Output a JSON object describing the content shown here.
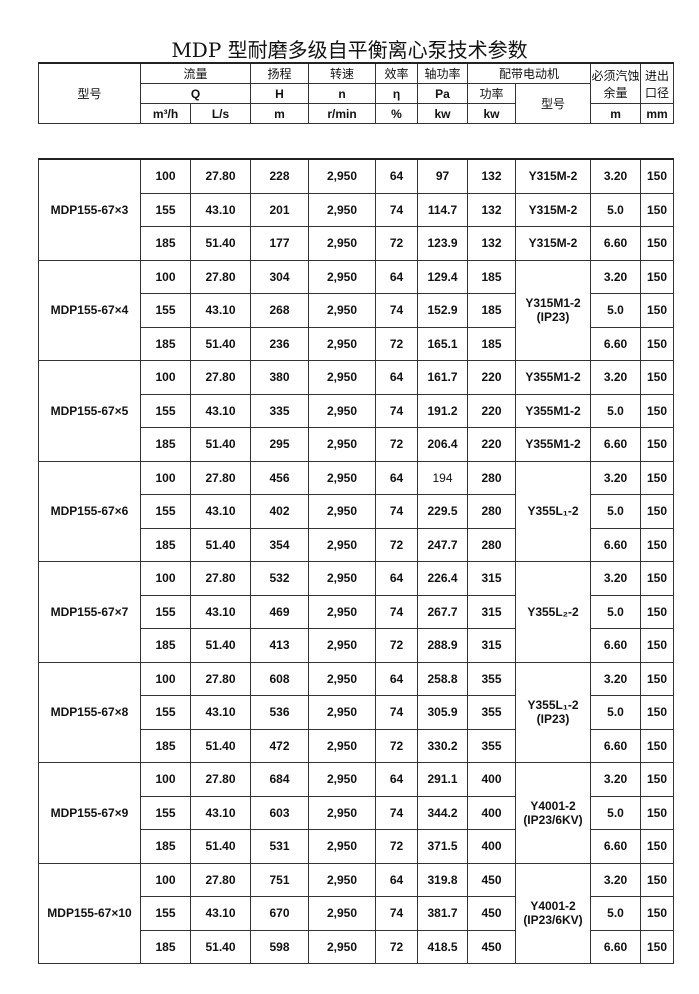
{
  "title": "MDP 型耐磨多级自平衡离心泵技术参数",
  "header": {
    "model": "型号",
    "flow": "流量",
    "head": "扬程",
    "speed": "转速",
    "eff": "效率",
    "shaft_power": "轴功率",
    "motor": "配带电动机",
    "npsh": "必须汽蚀余量",
    "port": "进出口径",
    "Q": "Q",
    "H": "H",
    "n": "n",
    "eta": "η",
    "Pa": "Pa",
    "motor_power": "功率",
    "motor_model": "型号",
    "u_q1": "m³/h",
    "u_q2": "L/s",
    "u_h": "m",
    "u_n": "r/min",
    "u_eta": "%",
    "u_pa": "kw",
    "u_kw": "kw",
    "u_npsh": "m",
    "u_port": "mm"
  },
  "groups": [
    {
      "model": "MDP155-67×3",
      "motor": [
        "Y315M-2",
        "Y315M-2",
        "Y315M-2"
      ],
      "rows": [
        [
          "100",
          "27.80",
          "228",
          "2,950",
          "64",
          "97",
          "132",
          "3.20",
          "150"
        ],
        [
          "155",
          "43.10",
          "201",
          "2,950",
          "74",
          "114.7",
          "132",
          "5.0",
          "150"
        ],
        [
          "185",
          "51.40",
          "177",
          "2,950",
          "72",
          "123.9",
          "132",
          "6.60",
          "150"
        ]
      ]
    },
    {
      "model": "MDP155-67×4",
      "motor": "Y315M1-2\n(IP23)",
      "rows": [
        [
          "100",
          "27.80",
          "304",
          "2,950",
          "64",
          "129.4",
          "185",
          "3.20",
          "150"
        ],
        [
          "155",
          "43.10",
          "268",
          "2,950",
          "74",
          "152.9",
          "185",
          "5.0",
          "150"
        ],
        [
          "185",
          "51.40",
          "236",
          "2,950",
          "72",
          "165.1",
          "185",
          "6.60",
          "150"
        ]
      ]
    },
    {
      "model": "MDP155-67×5",
      "motor": [
        "Y355M1-2",
        "Y355M1-2",
        "Y355M1-2"
      ],
      "rows": [
        [
          "100",
          "27.80",
          "380",
          "2,950",
          "64",
          "161.7",
          "220",
          "3.20",
          "150"
        ],
        [
          "155",
          "43.10",
          "335",
          "2,950",
          "74",
          "191.2",
          "220",
          "5.0",
          "150"
        ],
        [
          "185",
          "51.40",
          "295",
          "2,950",
          "72",
          "206.4",
          "220",
          "6.60",
          "150"
        ]
      ]
    },
    {
      "model": "MDP155-67×6",
      "motor": "Y355L₁-2",
      "rows": [
        [
          "100",
          "27.80",
          "456",
          "2,950",
          "64",
          "194",
          "280",
          "3.20",
          "150"
        ],
        [
          "155",
          "43.10",
          "402",
          "2,950",
          "74",
          "229.5",
          "280",
          "5.0",
          "150"
        ],
        [
          "185",
          "51.40",
          "354",
          "2,950",
          "72",
          "247.7",
          "280",
          "6.60",
          "150"
        ]
      ]
    },
    {
      "model": "MDP155-67×7",
      "motor": "Y355L₂-2",
      "rows": [
        [
          "100",
          "27.80",
          "532",
          "2,950",
          "64",
          "226.4",
          "315",
          "3.20",
          "150"
        ],
        [
          "155",
          "43.10",
          "469",
          "2,950",
          "74",
          "267.7",
          "315",
          "5.0",
          "150"
        ],
        [
          "185",
          "51.40",
          "413",
          "2,950",
          "72",
          "288.9",
          "315",
          "6.60",
          "150"
        ]
      ]
    },
    {
      "model": "MDP155-67×8",
      "motor": "Y355L₁-2\n(IP23)",
      "rows": [
        [
          "100",
          "27.80",
          "608",
          "2,950",
          "64",
          "258.8",
          "355",
          "3.20",
          "150"
        ],
        [
          "155",
          "43.10",
          "536",
          "2,950",
          "74",
          "305.9",
          "355",
          "5.0",
          "150"
        ],
        [
          "185",
          "51.40",
          "472",
          "2,950",
          "72",
          "330.2",
          "355",
          "6.60",
          "150"
        ]
      ]
    },
    {
      "model": "MDP155-67×9",
      "motor": "Y4001-2\n(IP23/6KV)",
      "rows": [
        [
          "100",
          "27.80",
          "684",
          "2,950",
          "64",
          "291.1",
          "400",
          "3.20",
          "150"
        ],
        [
          "155",
          "43.10",
          "603",
          "2,950",
          "74",
          "344.2",
          "400",
          "5.0",
          "150"
        ],
        [
          "185",
          "51.40",
          "531",
          "2,950",
          "72",
          "371.5",
          "400",
          "6.60",
          "150"
        ]
      ]
    },
    {
      "model": "MDP155-67×10",
      "motor": "Y4001-2\n(IP23/6KV)",
      "rows": [
        [
          "100",
          "27.80",
          "751",
          "2,950",
          "64",
          "319.8",
          "450",
          "3.20",
          "150"
        ],
        [
          "155",
          "43.10",
          "670",
          "2,950",
          "74",
          "381.7",
          "450",
          "5.0",
          "150"
        ],
        [
          "185",
          "51.40",
          "598",
          "2,950",
          "72",
          "418.5",
          "450",
          "6.60",
          "150"
        ]
      ]
    }
  ]
}
